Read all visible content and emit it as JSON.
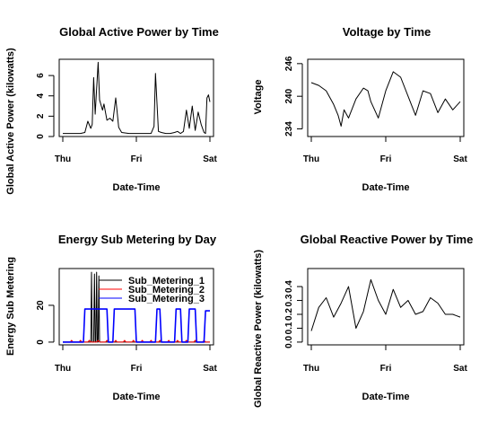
{
  "chart_data": [
    {
      "type": "line",
      "title": "Global Active Power by Time",
      "xlabel": "Date-Time",
      "ylabel": "Global Active Power (kilowatts)",
      "xticks": [
        "Thu",
        "Fri",
        "Sat"
      ],
      "yticks": [
        0,
        2,
        4,
        6
      ],
      "ylim": [
        0,
        7.6
      ],
      "series": [
        {
          "name": "Global Active Power",
          "color": "#000000",
          "x": [
            0,
            0.06,
            0.12,
            0.15,
            0.17,
            0.19,
            0.2,
            0.21,
            0.22,
            0.24,
            0.25,
            0.27,
            0.28,
            0.3,
            0.32,
            0.34,
            0.36,
            0.38,
            0.4,
            0.45,
            0.5,
            0.55,
            0.6,
            0.62,
            0.63,
            0.65,
            0.67,
            0.7,
            0.73,
            0.76,
            0.78,
            0.8,
            0.82,
            0.84,
            0.86,
            0.88,
            0.9,
            0.92,
            0.94,
            0.96,
            0.97,
            0.98,
            0.99,
            1.0
          ],
          "values": [
            0.3,
            0.3,
            0.3,
            0.4,
            1.5,
            0.8,
            1.2,
            5.8,
            2.2,
            7.3,
            3.6,
            2.6,
            3.2,
            1.6,
            1.8,
            1.5,
            3.8,
            0.9,
            0.4,
            0.3,
            0.3,
            0.3,
            0.3,
            1.0,
            6.2,
            0.5,
            0.4,
            0.3,
            0.3,
            0.4,
            0.5,
            0.3,
            0.5,
            2.6,
            0.8,
            3.0,
            0.6,
            2.4,
            1.2,
            0.4,
            0.3,
            3.8,
            4.1,
            3.4
          ]
        }
      ]
    },
    {
      "type": "line",
      "title": "Voltage by Time",
      "xlabel": "Date-Time",
      "ylabel": "Voltage",
      "xticks": [
        "Thu",
        "Fri",
        "Sat"
      ],
      "yticks": [
        234,
        240,
        246
      ],
      "ylim": [
        232.6,
        246.8
      ],
      "series": [
        {
          "name": "Voltage",
          "color": "#000000",
          "x": [
            0,
            0.05,
            0.1,
            0.15,
            0.18,
            0.2,
            0.22,
            0.25,
            0.3,
            0.35,
            0.38,
            0.4,
            0.45,
            0.5,
            0.55,
            0.6,
            0.65,
            0.7,
            0.75,
            0.8,
            0.85,
            0.9,
            0.95,
            1.0
          ],
          "values": [
            242.5,
            242.0,
            241.0,
            238.5,
            236.5,
            234.5,
            237.5,
            236.0,
            239.5,
            241.5,
            241.0,
            239.0,
            236.0,
            241.0,
            244.5,
            243.5,
            240.0,
            236.5,
            241.0,
            240.5,
            237.0,
            239.5,
            237.5,
            239.0
          ]
        }
      ]
    },
    {
      "type": "line",
      "title": "Energy Sub Metering by Day",
      "xlabel": "Date-Time",
      "ylabel": "Energy Sub Metering",
      "xticks": [
        "Thu",
        "Fri",
        "Sat"
      ],
      "yticks": [
        0,
        20
      ],
      "ylim": [
        -1.5,
        40
      ],
      "legend": {
        "placement": "top-right",
        "entries": [
          "Sub_Metering_1",
          "Sub_Metering_2",
          "Sub_Metering_3"
        ]
      },
      "series": [
        {
          "name": "Sub_Metering_1",
          "color": "#000000",
          "x": [
            0,
            0.19,
            0.195,
            0.2,
            0.21,
            0.215,
            0.22,
            0.225,
            0.23,
            0.235,
            0.24,
            0.245,
            0.25,
            1.0
          ],
          "values": [
            0,
            0,
            38,
            0,
            0,
            37,
            0,
            0,
            38,
            0,
            0,
            36,
            0,
            0
          ]
        },
        {
          "name": "Sub_Metering_2",
          "color": "#ff0000",
          "x": [
            0,
            0.05,
            0.06,
            0.07,
            0.11,
            0.12,
            0.13,
            0.17,
            0.18,
            0.19,
            0.23,
            0.24,
            0.25,
            0.29,
            0.3,
            0.31,
            0.35,
            0.36,
            0.37,
            0.41,
            0.42,
            0.43,
            0.47,
            0.48,
            0.49,
            0.53,
            0.54,
            0.55,
            0.59,
            0.6,
            0.61,
            0.65,
            0.66,
            0.67,
            0.71,
            0.72,
            0.73,
            0.77,
            0.78,
            0.79,
            0.83,
            0.84,
            0.85,
            0.89,
            0.9,
            0.91,
            0.95,
            0.96,
            0.97,
            1.0
          ],
          "values": [
            0,
            0,
            1,
            0,
            0,
            1,
            0,
            0,
            1,
            0,
            0,
            1,
            0,
            0,
            1,
            0,
            0,
            1,
            0,
            0,
            1,
            0,
            0,
            1,
            0,
            0,
            1,
            0,
            0,
            1,
            0,
            0,
            1,
            0,
            0,
            1,
            0,
            0,
            1,
            0,
            0,
            1,
            0,
            0,
            1,
            0,
            0,
            1,
            0,
            0
          ]
        },
        {
          "name": "Sub_Metering_3",
          "color": "#0000ff",
          "x": [
            0,
            0.14,
            0.15,
            0.3,
            0.31,
            0.34,
            0.35,
            0.49,
            0.5,
            0.63,
            0.64,
            0.66,
            0.67,
            0.76,
            0.77,
            0.8,
            0.81,
            0.85,
            0.86,
            0.9,
            0.91,
            0.96,
            0.97,
            1.0
          ],
          "values": [
            0,
            0,
            18,
            18,
            0,
            0,
            18,
            18,
            0,
            0,
            18,
            18,
            0,
            0,
            18,
            18,
            0,
            0,
            18,
            18,
            0,
            0,
            17,
            17
          ]
        }
      ]
    },
    {
      "type": "line",
      "title": "Global Reactive Power by Time",
      "xlabel": "Date-Time",
      "ylabel": "Global Reactive Power (kilowatts)",
      "xticks": [
        "Thu",
        "Fri",
        "Sat"
      ],
      "yticks": [
        0.0,
        0.1,
        0.2,
        0.3,
        0.4
      ],
      "ylim": [
        -0.02,
        0.53
      ],
      "series": [
        {
          "name": "Global Reactive Power",
          "color": "#000000",
          "x": [
            0,
            0.05,
            0.1,
            0.15,
            0.2,
            0.25,
            0.3,
            0.35,
            0.4,
            0.45,
            0.5,
            0.55,
            0.6,
            0.65,
            0.7,
            0.75,
            0.8,
            0.85,
            0.9,
            0.95,
            1.0
          ],
          "values": [
            0.08,
            0.25,
            0.32,
            0.18,
            0.28,
            0.4,
            0.1,
            0.22,
            0.45,
            0.3,
            0.2,
            0.38,
            0.25,
            0.3,
            0.2,
            0.22,
            0.32,
            0.28,
            0.2,
            0.2,
            0.18
          ]
        }
      ]
    }
  ]
}
